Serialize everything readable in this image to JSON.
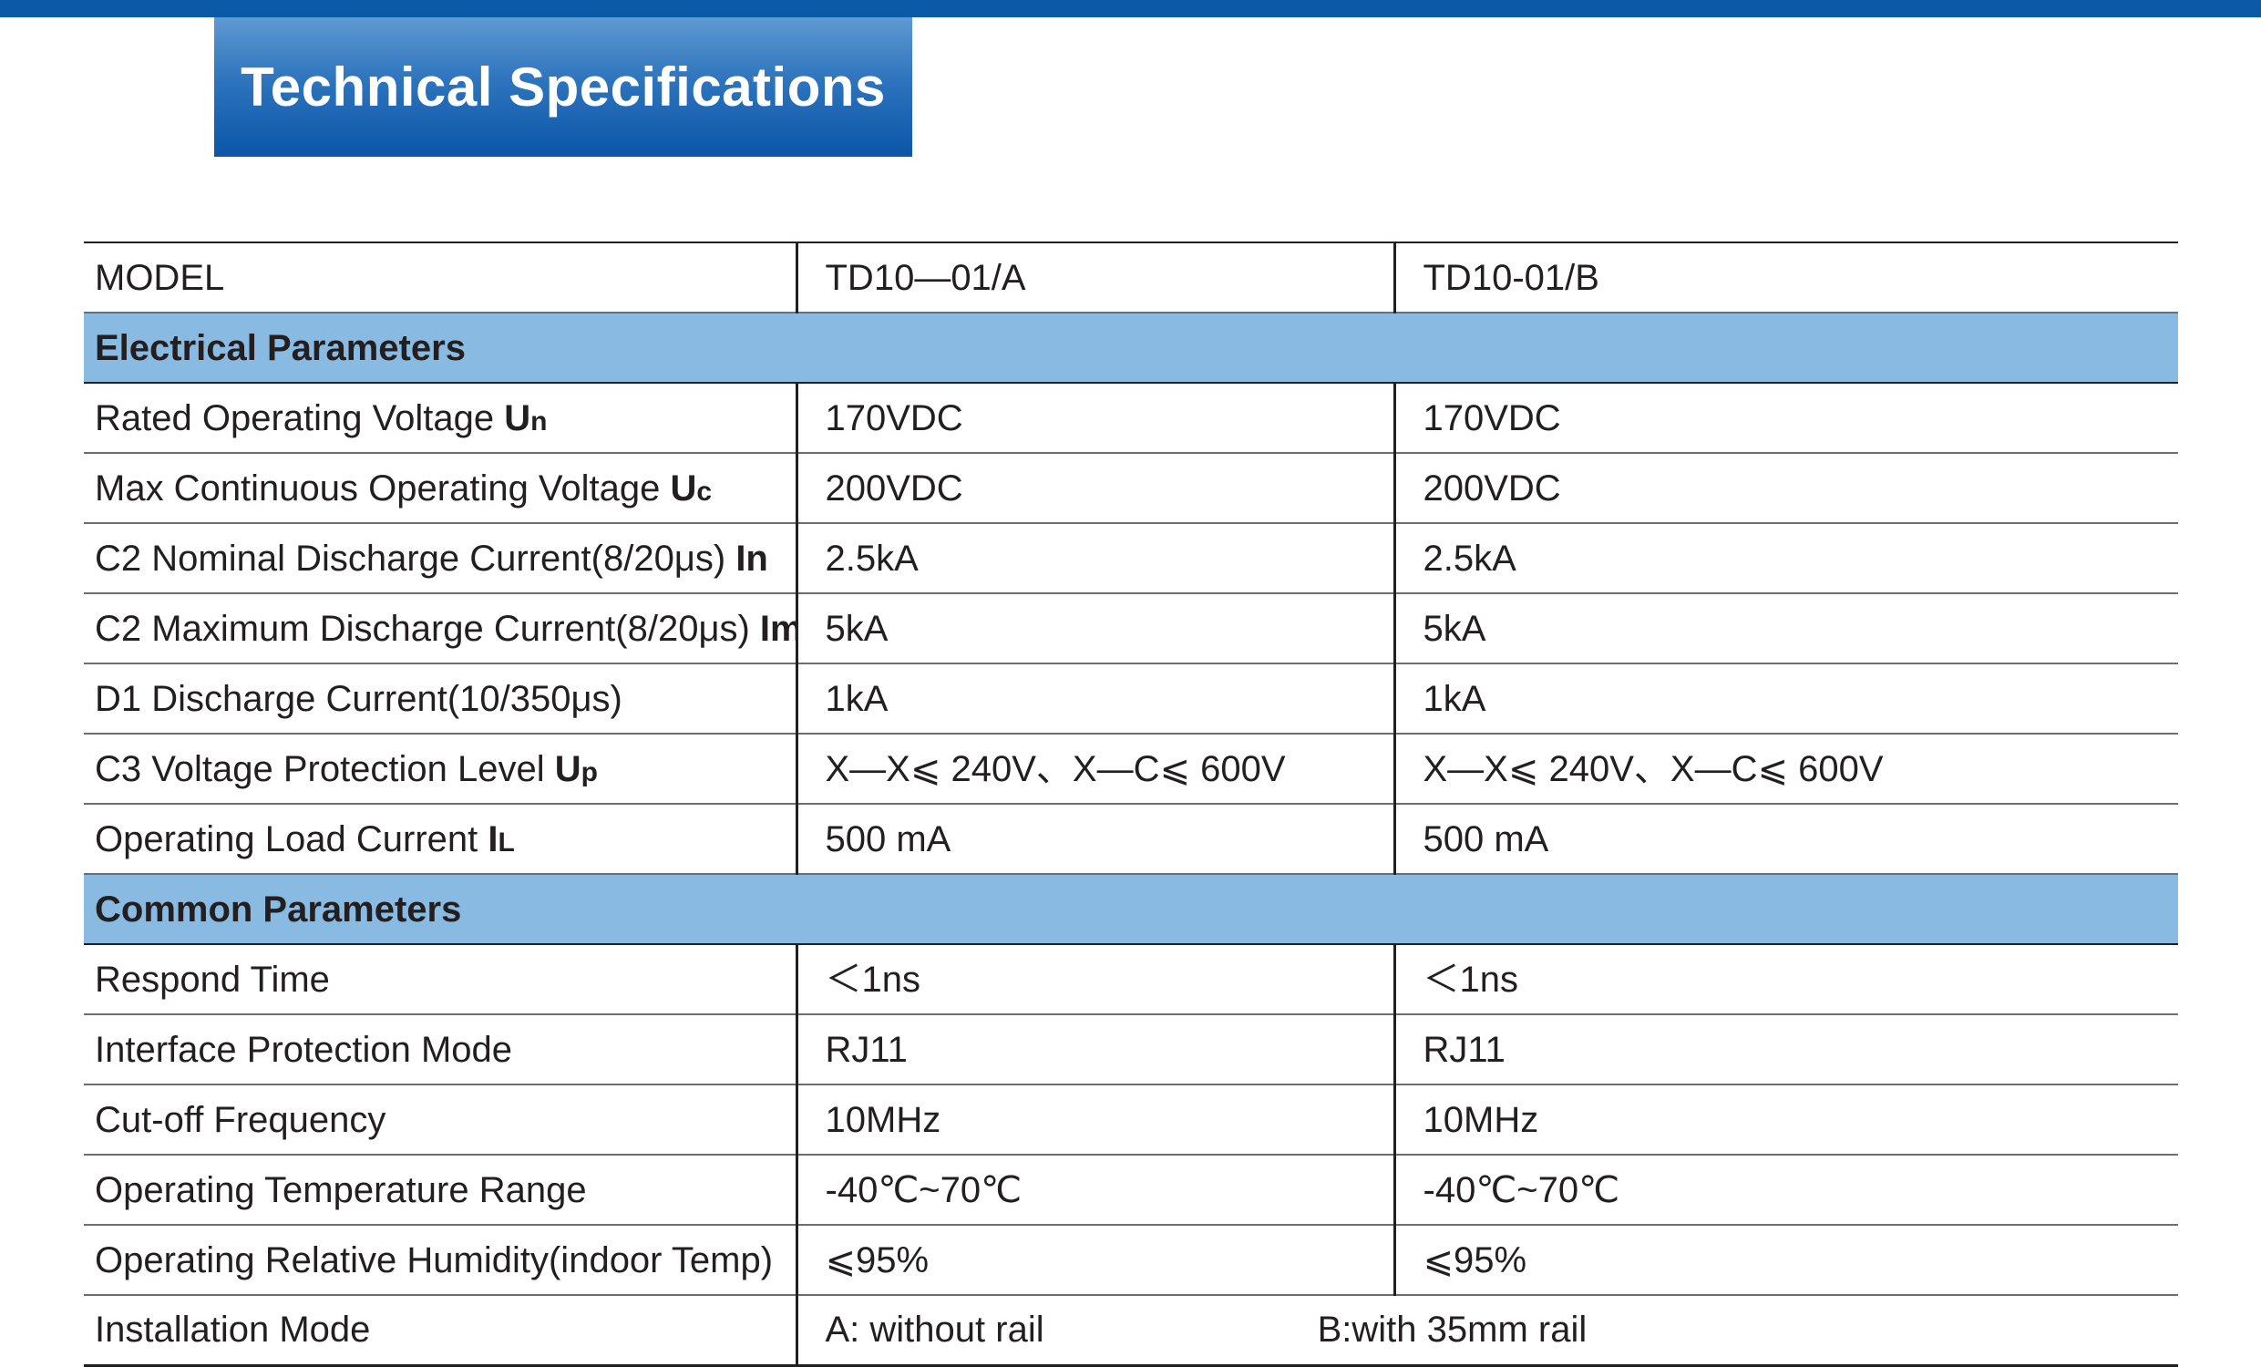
{
  "header": {
    "title": "Technical Specifications"
  },
  "colors": {
    "top_bar": "#0a5aa8",
    "title_gradient_top": "#5f9ad2",
    "title_gradient_bottom": "#0b56a8",
    "section_band": "#88bae2"
  },
  "table": {
    "model_row": {
      "label": "MODEL",
      "a": "TD10—01/A",
      "b": "TD10-01/B"
    },
    "electrical": {
      "heading": "Electrical Parameters",
      "rows": [
        {
          "label": "Rated Operating Voltage ",
          "sym": "U",
          "sub": "n",
          "a": "170VDC",
          "b": "170VDC"
        },
        {
          "label": "Max Continuous Operating Voltage ",
          "sym": "U",
          "sub": "c",
          "a": "200VDC",
          "b": "200VDC"
        },
        {
          "label": "C2 Nominal Discharge Current(8/20μs) ",
          "sym": "In",
          "sub": "",
          "a": "2.5kA",
          "b": "2.5kA"
        },
        {
          "label": "C2 Maximum Discharge Current(8/20μs) ",
          "sym": "Imax",
          "sub": "",
          "a": "5kA",
          "b": "5kA"
        },
        {
          "label": "D1 Discharge Current(10/350μs)",
          "sym": "",
          "sub": "",
          "a": "1kA",
          "b": "1kA"
        },
        {
          "label": "C3 Voltage Protection Level ",
          "sym": "U",
          "sub": "p",
          "a": "X—X⩽ 240V、X—C⩽ 600V",
          "b": "X—X⩽ 240V、X—C⩽ 600V"
        },
        {
          "label": "Operating Load Current ",
          "sym": "I",
          "sub": "L",
          "a": "500 mA",
          "b": "500 mA"
        }
      ]
    },
    "common": {
      "heading": "Common Parameters",
      "rows": [
        {
          "label": "Respond Time",
          "a": "＜1ns",
          "b": "＜1ns"
        },
        {
          "label": "Interface Protection Mode",
          "a": "RJ11",
          "b": "RJ11"
        },
        {
          "label": "Cut-off Frequency",
          "a": "10MHz",
          "b": "10MHz"
        },
        {
          "label": "Operating Temperature Range",
          "a": "-40℃~70℃",
          "b": "-40℃~70℃"
        },
        {
          "label": "Operating Relative Humidity(indoor Temp)",
          "a": "⩽95%",
          "b": "⩽95%"
        }
      ]
    },
    "installation": {
      "label": "Installation Mode",
      "a": "A: without rail",
      "b": "B:with 35mm rail"
    }
  }
}
